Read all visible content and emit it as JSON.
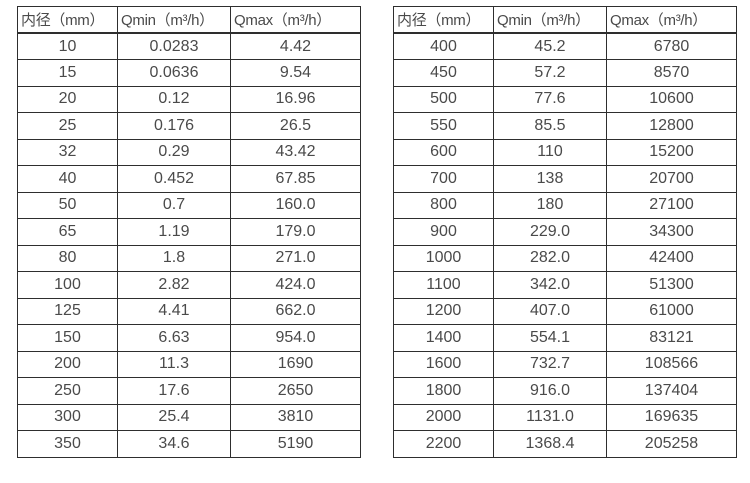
{
  "colors": {
    "background": "#ffffff",
    "text": "#4a4a4a",
    "border": "#2e2e2e"
  },
  "tables": [
    {
      "name": "small-diameters",
      "headers": [
        "内径（mm）",
        "Qmin（m³/h）",
        "Qmax（m³/h）"
      ],
      "rows": [
        [
          "10",
          "0.0283",
          "4.42"
        ],
        [
          "15",
          "0.0636",
          "9.54"
        ],
        [
          "20",
          "0.12",
          "16.96"
        ],
        [
          "25",
          "0.176",
          "26.5"
        ],
        [
          "32",
          "0.29",
          "43.42"
        ],
        [
          "40",
          "0.452",
          "67.85"
        ],
        [
          "50",
          "0.7",
          "160.0"
        ],
        [
          "65",
          "1.19",
          "179.0"
        ],
        [
          "80",
          "1.8",
          "271.0"
        ],
        [
          "100",
          "2.82",
          "424.0"
        ],
        [
          "125",
          "4.41",
          "662.0"
        ],
        [
          "150",
          "6.63",
          "954.0"
        ],
        [
          "200",
          "11.3",
          "1690"
        ],
        [
          "250",
          "17.6",
          "2650"
        ],
        [
          "300",
          "25.4",
          "3810"
        ],
        [
          "350",
          "34.6",
          "5190"
        ]
      ]
    },
    {
      "name": "large-diameters",
      "headers": [
        "内径（mm）",
        "Qmin（m³/h）",
        "Qmax（m³/h）"
      ],
      "rows": [
        [
          "400",
          "45.2",
          "6780"
        ],
        [
          "450",
          "57.2",
          "8570"
        ],
        [
          "500",
          "77.6",
          "10600"
        ],
        [
          "550",
          "85.5",
          "12800"
        ],
        [
          "600",
          "110",
          "15200"
        ],
        [
          "700",
          "138",
          "20700"
        ],
        [
          "800",
          "180",
          "27100"
        ],
        [
          "900",
          "229.0",
          "34300"
        ],
        [
          "1000",
          "282.0",
          "42400"
        ],
        [
          "1100",
          "342.0",
          "51300"
        ],
        [
          "1200",
          "407.0",
          "61000"
        ],
        [
          "1400",
          "554.1",
          "83121"
        ],
        [
          "1600",
          "732.7",
          "108566"
        ],
        [
          "1800",
          "916.0",
          "137404"
        ],
        [
          "2000",
          "1131.0",
          "169635"
        ],
        [
          "2200",
          "1368.4",
          "205258"
        ]
      ]
    }
  ]
}
